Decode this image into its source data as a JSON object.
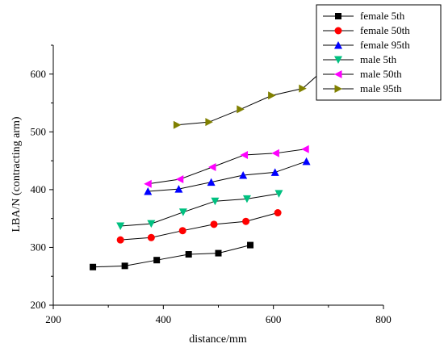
{
  "chart_data": {
    "type": "line",
    "xlabel": "distance/mm",
    "ylabel": "LBA/N (contracting arm)",
    "xlim": [
      200,
      800
    ],
    "ylim": [
      200,
      650
    ],
    "xticks": [
      "200",
      "400",
      "600",
      "800"
    ],
    "yticks": [
      "200",
      "300",
      "400",
      "500",
      "600"
    ],
    "grid": false,
    "legend_position": "top-right",
    "series": [
      {
        "name": "female 5th",
        "color": "#000000",
        "marker": "square",
        "x": [
          272,
          330,
          388,
          446,
          500,
          558
        ],
        "y": [
          266,
          268,
          278,
          288,
          290,
          304
        ]
      },
      {
        "name": "female 50th",
        "color": "#ff0000",
        "marker": "circle",
        "x": [
          322,
          378,
          435,
          492,
          550,
          608
        ],
        "y": [
          313,
          317,
          329,
          340,
          345,
          360
        ]
      },
      {
        "name": "female 95th",
        "color": "#0000ff",
        "marker": "triangle-up",
        "x": [
          372,
          428,
          487,
          545,
          603,
          660
        ],
        "y": [
          397,
          401,
          413,
          425,
          430,
          449
        ]
      },
      {
        "name": "male 5th",
        "color": "#00c080",
        "marker": "triangle-down",
        "x": [
          322,
          378,
          436,
          494,
          552,
          610
        ],
        "y": [
          337,
          341,
          361,
          380,
          384,
          393
        ]
      },
      {
        "name": "male 50th",
        "color": "#ff00ff",
        "marker": "triangle-left",
        "x": [
          372,
          430,
          489,
          547,
          604,
          658
        ],
        "y": [
          410,
          418,
          439,
          460,
          463,
          470
        ]
      },
      {
        "name": "male 95th",
        "color": "#808000",
        "marker": "triangle-right",
        "x": [
          425,
          483,
          540,
          597,
          653,
          712
        ],
        "y": [
          512,
          517,
          539,
          563,
          575,
          625
        ]
      }
    ]
  }
}
